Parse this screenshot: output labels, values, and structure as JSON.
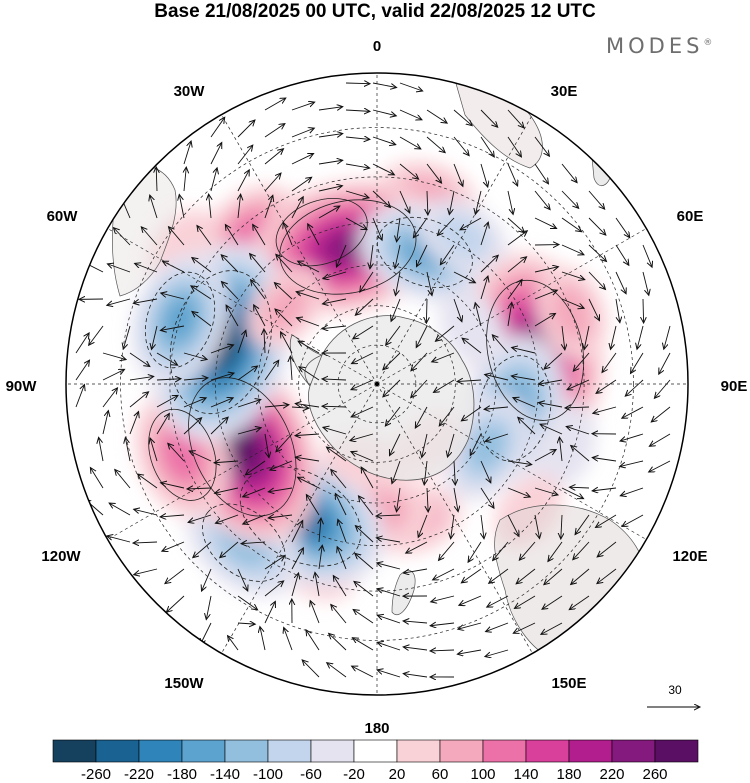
{
  "title": "Base 21/08/2025 00 UTC, valid 22/08/2025 12 UTC",
  "brand": {
    "name": "MODES",
    "mark": "®"
  },
  "longitude_labels": {
    "n0": "0",
    "n30e": "30E",
    "n60e": "60E",
    "n90e": "90E",
    "n120e": "120E",
    "n150e": "150E",
    "n180": "180",
    "n150w": "150W",
    "n120w": "120W",
    "n90w": "90W",
    "n60w": "60W",
    "n30w": "30W"
  },
  "vector_key": {
    "value": "30"
  },
  "colorbar": {
    "labels": [
      "-260",
      "-220",
      "-180",
      "-140",
      "-100",
      "-60",
      "-20",
      "20",
      "60",
      "100",
      "140",
      "180",
      "220",
      "260"
    ],
    "colors": [
      "#15405e",
      "#1a6291",
      "#2f84ba",
      "#5da3cf",
      "#93bfdf",
      "#c3d5ec",
      "#e5e3f0",
      "#ffffff",
      "#f9d2d8",
      "#f4a9bc",
      "#ec71a8",
      "#d8409b",
      "#b31e8e",
      "#851a7e",
      "#5a0f64"
    ]
  },
  "anomalies": [
    {
      "lon": 15,
      "lat": -43,
      "value": 70
    },
    {
      "lon": -20,
      "lat": -50,
      "value": 120
    },
    {
      "lon": -40,
      "lat": -42,
      "value": 90
    },
    {
      "lon": -55,
      "lat": -34,
      "value": 40
    },
    {
      "lon": -12,
      "lat": -55,
      "value": 230
    },
    {
      "lon": 20,
      "lat": -55,
      "value": -130
    },
    {
      "lon": 30,
      "lat": -48,
      "value": -60
    },
    {
      "lon": 78,
      "lat": -50,
      "value": 240
    },
    {
      "lon": 70,
      "lat": -40,
      "value": 60
    },
    {
      "lon": 100,
      "lat": -55,
      "value": -150
    },
    {
      "lon": 108,
      "lat": -42,
      "value": -40
    },
    {
      "lon": 120,
      "lat": -58,
      "value": -90
    },
    {
      "lon": 130,
      "lat": -42,
      "value": 30
    },
    {
      "lon": 165,
      "lat": -55,
      "value": 60
    },
    {
      "lon": 180,
      "lat": -58,
      "value": 80
    },
    {
      "lon": -163,
      "lat": -42,
      "value": 20
    },
    {
      "lon": -150,
      "lat": -52,
      "value": -210
    },
    {
      "lon": -140,
      "lat": -40,
      "value": -120
    },
    {
      "lon": -115,
      "lat": -53,
      "value": 250
    },
    {
      "lon": -110,
      "lat": -40,
      "value": 120
    },
    {
      "lon": -75,
      "lat": -50,
      "value": -250
    },
    {
      "lon": -72,
      "lat": -40,
      "value": -130
    },
    {
      "lon": -50,
      "lat": -60,
      "value": 50
    },
    {
      "lon": 60,
      "lat": -62,
      "value": -40
    },
    {
      "lon": -170,
      "lat": -70,
      "value": 30
    },
    {
      "lon": 140,
      "lat": -70,
      "value": 25
    }
  ]
}
